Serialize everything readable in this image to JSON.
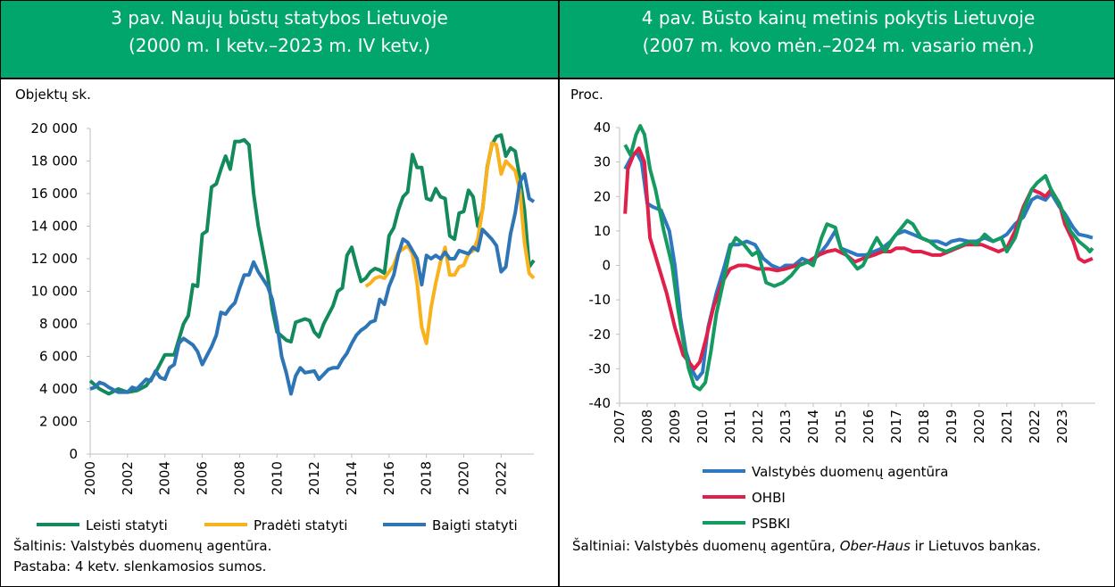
{
  "chart_data": [
    {
      "type": "line",
      "title": "3 pav. Naujų būstų statybos Lietuvoje",
      "subtitle": "(2000 m. I ketv.–2023 m. IV ketv.)",
      "y_label": "Objektų sk.",
      "xlim": [
        2000,
        2023.75
      ],
      "xticks": [
        2000,
        2002,
        2004,
        2006,
        2008,
        2010,
        2012,
        2014,
        2016,
        2018,
        2020,
        2022
      ],
      "ylim": [
        0,
        20000
      ],
      "yticks": [
        0,
        {
          "value": 2000,
          "label": "2 000"
        },
        {
          "value": 4000,
          "label": "4 000"
        },
        {
          "value": 6000,
          "label": "6 000"
        },
        {
          "value": 8000,
          "label": "8 000"
        },
        {
          "value": 10000,
          "label": "10 000"
        },
        {
          "value": 12000,
          "label": "12 000"
        },
        {
          "value": 14000,
          "label": "14 000"
        },
        {
          "value": 16000,
          "label": "16 000"
        },
        {
          "value": 18000,
          "label": "18 000"
        },
        {
          "value": 20000,
          "label": "20 000"
        }
      ],
      "grid": false,
      "legend": "bottom",
      "series": [
        {
          "name": "Leisti statyti",
          "color": "#138a5b",
          "x": [
            2000,
            2000.5,
            2001,
            2001.5,
            2002,
            2002.5,
            2003,
            2003.5,
            2004,
            2004.5,
            2005,
            2005.25,
            2005.5,
            2005.75,
            2006,
            2006.25,
            2006.5,
            2006.75,
            2007,
            2007.25,
            2007.5,
            2007.75,
            2008,
            2008.25,
            2008.5,
            2008.75,
            2009,
            2009.5,
            2009.75,
            2010,
            2010.5,
            2010.75,
            2011,
            2011.5,
            2011.75,
            2012,
            2012.25,
            2012.5,
            2013,
            2013.25,
            2013.5,
            2013.75,
            2014,
            2014.25,
            2014.5,
            2014.75,
            2015,
            2015.25,
            2015.5,
            2015.75,
            2016,
            2016.25,
            2016.5,
            2016.75,
            2017,
            2017.25,
            2017.5,
            2017.75,
            2018,
            2018.25,
            2018.5,
            2018.75,
            2019,
            2019.25,
            2019.5,
            2019.75,
            2020,
            2020.25,
            2020.5,
            2020.75,
            2021,
            2021.25,
            2021.5,
            2021.75,
            2022,
            2022.25,
            2022.5,
            2022.75,
            2023,
            2023.25,
            2023.5,
            2023.75
          ],
          "values": [
            4500,
            4000,
            3700,
            4000,
            3800,
            3900,
            4200,
            5000,
            6100,
            6100,
            8000,
            8500,
            10400,
            10300,
            13500,
            13700,
            16400,
            16600,
            17500,
            18300,
            17500,
            19200,
            19200,
            19300,
            19000,
            16000,
            14000,
            11000,
            8900,
            7500,
            7000,
            6900,
            8100,
            8300,
            8200,
            7500,
            7200,
            8000,
            9100,
            10000,
            10200,
            12200,
            12700,
            11600,
            10600,
            10800,
            11200,
            11400,
            11300,
            11100,
            13400,
            13900,
            15000,
            15800,
            16100,
            18400,
            17600,
            17600,
            15700,
            15600,
            16300,
            15800,
            15700,
            13400,
            13200,
            14800,
            14900,
            16200,
            15800,
            14000,
            15000,
            17600,
            19000,
            19500,
            19600,
            18300,
            18800,
            18600,
            17000,
            15000,
            11500,
            11900
          ]
        },
        {
          "name": "Pradėti statyti",
          "color": "#f9b21b",
          "x": [
            2014.75,
            2015,
            2015.25,
            2015.5,
            2015.75,
            2016,
            2016.25,
            2016.5,
            2016.75,
            2017,
            2017.25,
            2017.5,
            2017.75,
            2018,
            2018.25,
            2018.5,
            2018.75,
            2019,
            2019.25,
            2019.5,
            2019.75,
            2020,
            2020.25,
            2020.5,
            2020.75,
            2021,
            2021.25,
            2021.5,
            2021.75,
            2022,
            2022.25,
            2022.5,
            2022.75,
            2023,
            2023.25,
            2023.5,
            2023.75
          ],
          "values": [
            10300,
            10500,
            10800,
            10900,
            10800,
            11200,
            11600,
            12400,
            12600,
            12800,
            12300,
            10500,
            7800,
            6800,
            9000,
            10500,
            11800,
            12700,
            11000,
            11000,
            11500,
            11600,
            12300,
            12500,
            13200,
            15000,
            17500,
            19100,
            19000,
            17200,
            18000,
            17700,
            17400,
            16200,
            13000,
            11100,
            10800
          ]
        },
        {
          "name": "Baigti statyti",
          "color": "#2e75b6",
          "x": [
            2000,
            2000.25,
            2000.5,
            2000.75,
            2001,
            2001.5,
            2002,
            2002.25,
            2002.5,
            2003,
            2003.25,
            2003.5,
            2003.75,
            2004,
            2004.25,
            2004.5,
            2004.75,
            2005,
            2005.5,
            2005.75,
            2006,
            2006.5,
            2006.75,
            2007,
            2007.25,
            2007.5,
            2007.75,
            2008,
            2008.25,
            2008.5,
            2008.75,
            2009,
            2009.5,
            2009.75,
            2010,
            2010.25,
            2010.5,
            2010.75,
            2011,
            2011.25,
            2011.5,
            2012,
            2012.25,
            2012.5,
            2012.75,
            2013,
            2013.25,
            2013.5,
            2013.75,
            2014,
            2014.25,
            2014.5,
            2014.75,
            2015,
            2015.25,
            2015.5,
            2015.75,
            2016,
            2016.25,
            2016.5,
            2016.75,
            2017,
            2017.25,
            2017.5,
            2017.75,
            2018,
            2018.25,
            2018.5,
            2018.75,
            2019,
            2019.25,
            2019.5,
            2019.75,
            2020,
            2020.25,
            2020.5,
            2020.75,
            2021,
            2021.25,
            2021.5,
            2021.75,
            2022,
            2022.25,
            2022.5,
            2022.75,
            2023,
            2023.25,
            2023.5,
            2023.75
          ],
          "values": [
            4000,
            4100,
            4400,
            4300,
            4100,
            3800,
            3800,
            4100,
            4000,
            4600,
            4500,
            5100,
            4700,
            4600,
            5300,
            5500,
            6800,
            7100,
            6700,
            6300,
            5500,
            6600,
            7300,
            8700,
            8600,
            9000,
            9300,
            10200,
            11000,
            11000,
            11800,
            11200,
            10300,
            9500,
            8000,
            6000,
            5000,
            3700,
            4800,
            5300,
            5000,
            5100,
            4600,
            4900,
            5200,
            5300,
            5300,
            5800,
            6200,
            6800,
            7300,
            7600,
            7800,
            8100,
            8200,
            9500,
            9200,
            10300,
            11000,
            12300,
            13200,
            13000,
            12500,
            12000,
            10400,
            12200,
            12000,
            12200,
            12000,
            12400,
            12000,
            12000,
            12500,
            12400,
            12300,
            12700,
            12500,
            13800,
            13500,
            13200,
            12800,
            11200,
            11500,
            13500,
            14800,
            16700,
            17200,
            15700,
            15500
          ]
        }
      ],
      "source": [
        "Šaltinis: Valstybės duomenų agentūra."
      ],
      "note": "Pastaba: 4 ketv. slenkamosios sumos."
    },
    {
      "type": "line",
      "title": "4 pav. Būsto kainų metinis pokytis Lietuvoje",
      "subtitle": "(2007 m. kovo mėn.–2024 m. vasario mėn.)",
      "y_label": "Proc.",
      "xlim": [
        2007,
        2024.2
      ],
      "xticks": [
        2007,
        2008,
        2009,
        2010,
        2011,
        2012,
        2013,
        2014,
        2015,
        2016,
        2017,
        2018,
        2019,
        2020,
        2021,
        2022,
        2023
      ],
      "ylim": [
        -40,
        40
      ],
      "yticks": [
        -40,
        -30,
        -20,
        -10,
        0,
        10,
        20,
        30,
        40
      ],
      "grid": false,
      "legend": "bottom",
      "series": [
        {
          "name": "Valstybės duomenų agentūra",
          "color": "#2e78c2",
          "x": [
            2007.2,
            2007.4,
            2007.6,
            2007.8,
            2008,
            2008.2,
            2008.5,
            2008.8,
            2009,
            2009.2,
            2009.4,
            2009.6,
            2009.8,
            2010,
            2010.2,
            2010.5,
            2010.8,
            2011,
            2011.3,
            2011.6,
            2011.9,
            2012.2,
            2012.5,
            2012.8,
            2013,
            2013.3,
            2013.6,
            2013.9,
            2014.2,
            2014.5,
            2014.8,
            2015,
            2015.3,
            2015.6,
            2015.9,
            2016.2,
            2016.5,
            2016.8,
            2017,
            2017.3,
            2017.6,
            2017.9,
            2018.2,
            2018.5,
            2018.8,
            2019,
            2019.3,
            2019.6,
            2019.9,
            2020.2,
            2020.5,
            2020.8,
            2021,
            2021.3,
            2021.6,
            2021.9,
            2022.1,
            2022.4,
            2022.6,
            2022.9,
            2023.1,
            2023.4,
            2023.6,
            2023.9,
            2024.1
          ],
          "values": [
            28,
            31,
            33,
            30,
            18,
            17,
            16,
            10,
            0,
            -15,
            -25,
            -30,
            -33,
            -31,
            -18,
            -8,
            0,
            6,
            6,
            7,
            6,
            2,
            0,
            -1,
            0,
            0,
            2,
            1,
            3,
            6,
            10,
            5,
            4,
            3,
            3,
            4,
            5,
            7,
            9,
            10,
            9,
            8,
            7,
            7,
            6,
            7,
            7.5,
            7,
            7,
            8,
            7,
            8,
            9,
            12,
            14,
            19,
            20,
            19,
            21,
            17,
            15,
            11,
            9,
            8.5,
            8
          ]
        },
        {
          "name": "OHBI",
          "color": "#e0204a",
          "x": [
            2007.2,
            2007.3,
            2007.5,
            2007.7,
            2007.9,
            2008.1,
            2008.4,
            2008.7,
            2009,
            2009.3,
            2009.5,
            2009.7,
            2009.9,
            2010.1,
            2010.4,
            2010.7,
            2011,
            2011.3,
            2011.6,
            2012,
            2012.4,
            2012.7,
            2013,
            2013.4,
            2013.8,
            2014.2,
            2014.5,
            2014.8,
            2015.2,
            2015.5,
            2015.8,
            2016.2,
            2016.5,
            2016.8,
            2017,
            2017.3,
            2017.6,
            2017.9,
            2018.3,
            2018.6,
            2018.9,
            2019.2,
            2019.5,
            2019.8,
            2020.1,
            2020.4,
            2020.7,
            2021,
            2021.3,
            2021.6,
            2021.9,
            2022.2,
            2022.4,
            2022.6,
            2022.9,
            2023.1,
            2023.4,
            2023.6,
            2023.8,
            2024.1
          ],
          "values": [
            15,
            28,
            32,
            34,
            30,
            8,
            0,
            -8,
            -18,
            -26,
            -28,
            -30,
            -28,
            -22,
            -12,
            -5,
            -1,
            0,
            0,
            -1,
            -1,
            -1.5,
            -1,
            0,
            1,
            3,
            4,
            4.5,
            3,
            1,
            2,
            3,
            4,
            4,
            5,
            5,
            4,
            4,
            3,
            3,
            4,
            5,
            6,
            6,
            6,
            5,
            4,
            5,
            10,
            17,
            22,
            21,
            20,
            22,
            18,
            12,
            7,
            2,
            1,
            2
          ]
        },
        {
          "name": "PSBKI",
          "color": "#159a62",
          "x": [
            2007.2,
            2007.4,
            2007.6,
            2007.75,
            2007.9,
            2008.1,
            2008.3,
            2008.6,
            2008.9,
            2009.1,
            2009.3,
            2009.5,
            2009.7,
            2009.9,
            2010.1,
            2010.3,
            2010.5,
            2010.8,
            2011,
            2011.2,
            2011.5,
            2011.8,
            2012,
            2012.3,
            2012.6,
            2012.9,
            2013.2,
            2013.5,
            2013.8,
            2014,
            2014.3,
            2014.5,
            2014.8,
            2015,
            2015.3,
            2015.6,
            2015.8,
            2016.1,
            2016.3,
            2016.6,
            2016.9,
            2017.2,
            2017.4,
            2017.6,
            2017.9,
            2018.2,
            2018.5,
            2018.8,
            2019.1,
            2019.4,
            2019.7,
            2019.9,
            2020.2,
            2020.5,
            2020.8,
            2021,
            2021.3,
            2021.6,
            2021.9,
            2022.1,
            2022.4,
            2022.6,
            2022.9,
            2023.1,
            2023.3,
            2023.6,
            2023.9,
            2024,
            2024.1
          ],
          "values": [
            35,
            32,
            38,
            40.5,
            38,
            28,
            22,
            10,
            0,
            -12,
            -22,
            -30,
            -35,
            -36,
            -34,
            -25,
            -14,
            -3,
            5,
            8,
            6,
            3,
            4,
            -5,
            -6,
            -5,
            -3,
            0,
            1,
            0,
            8,
            12,
            11,
            5,
            2,
            -1,
            0,
            5,
            8,
            4,
            8,
            11,
            13,
            12,
            8,
            7,
            5,
            4,
            5,
            6,
            7,
            6,
            9,
            7,
            8,
            4,
            8,
            16,
            22,
            24,
            26,
            22,
            18,
            14,
            10,
            7,
            5,
            4,
            5
          ]
        }
      ],
      "source": [
        "Šaltiniai: Valstybės duomenų agentūra, ",
        "Ober-Haus",
        " ir Lietuvos bankas."
      ]
    }
  ]
}
